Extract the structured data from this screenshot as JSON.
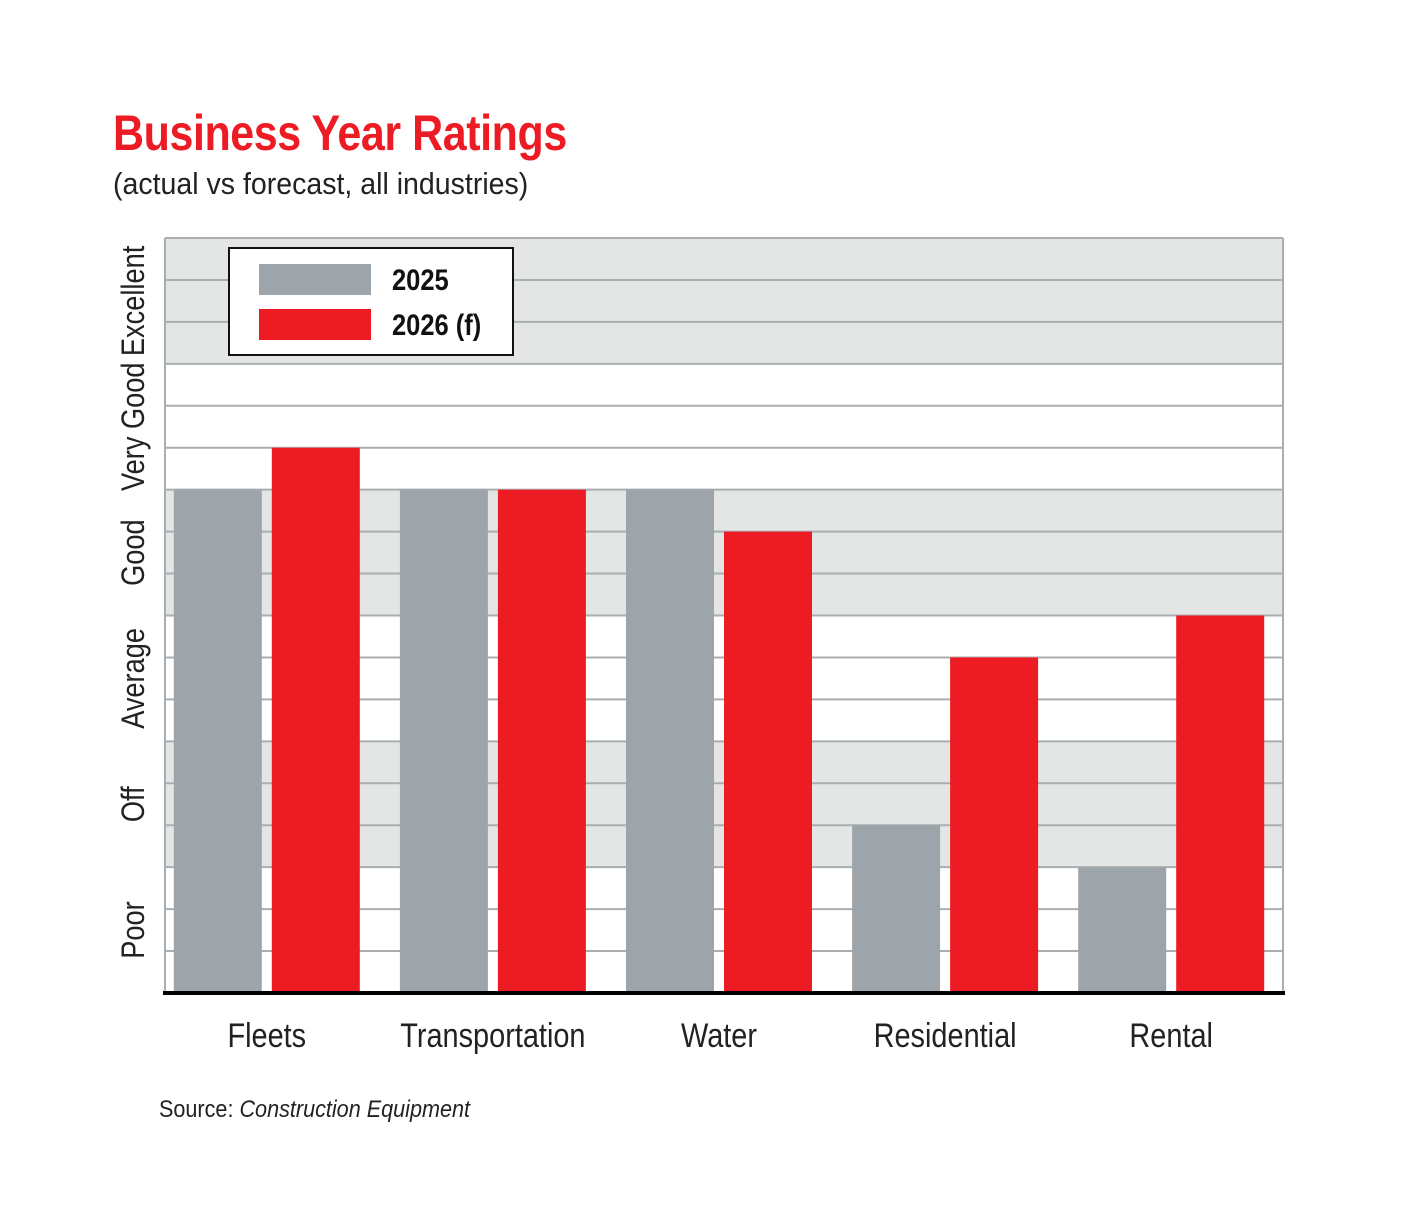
{
  "chart_data": {
    "type": "bar",
    "title": "Business Year Ratings",
    "subtitle": "(actual vs forecast, all industries)",
    "categories": [
      "Fleets",
      "Transportation",
      "Water",
      "Residential",
      "Rental"
    ],
    "y_scale": {
      "min": 0,
      "max": 18,
      "grid_step": 1
    },
    "y_bands": [
      {
        "label": "Poor",
        "from": 0,
        "to": 3,
        "shaded": false
      },
      {
        "label": "Off",
        "from": 3,
        "to": 6,
        "shaded": true
      },
      {
        "label": "Average",
        "from": 6,
        "to": 9,
        "shaded": false
      },
      {
        "label": "Good",
        "from": 9,
        "to": 12,
        "shaded": true
      },
      {
        "label": "Very Good",
        "from": 12,
        "to": 15,
        "shaded": false
      },
      {
        "label": "Excellent",
        "from": 15,
        "to": 18,
        "shaded": true
      }
    ],
    "series": [
      {
        "name": "2025",
        "color": "#9ea5aa",
        "values": [
          12,
          12,
          12,
          4,
          3
        ]
      },
      {
        "name": "2026 (f)",
        "color": "#ed1c24",
        "values": [
          13,
          12,
          11,
          8,
          9
        ]
      }
    ],
    "grid": true,
    "legend": "top-left",
    "band_color": "#e4e6e5"
  },
  "source": {
    "label": "Source:",
    "name": "Construction Equipment"
  }
}
